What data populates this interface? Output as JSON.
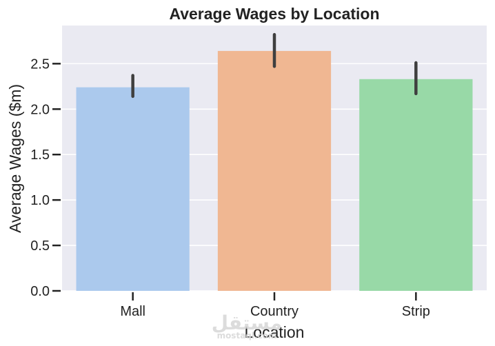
{
  "chart_data": {
    "type": "bar",
    "title": "Average Wages by Location",
    "xlabel": "Location",
    "ylabel": "Average Wages ($m)",
    "categories": [
      "Mall",
      "Country",
      "Strip"
    ],
    "values": [
      2.24,
      2.64,
      2.33
    ],
    "error_low": [
      2.14,
      2.47,
      2.17
    ],
    "error_high": [
      2.37,
      2.82,
      2.51
    ],
    "colors": [
      "#abc9ed",
      "#f0b792",
      "#98d9a7"
    ],
    "ylim": [
      0,
      2.92
    ],
    "yticks": [
      "0.0",
      "0.5",
      "1.0",
      "1.5",
      "2.0",
      "2.5"
    ],
    "grid": "horizontal",
    "background": "#eaeaf2"
  },
  "watermark": {
    "arabic": "مستقل",
    "latin": "mostaql.com"
  }
}
